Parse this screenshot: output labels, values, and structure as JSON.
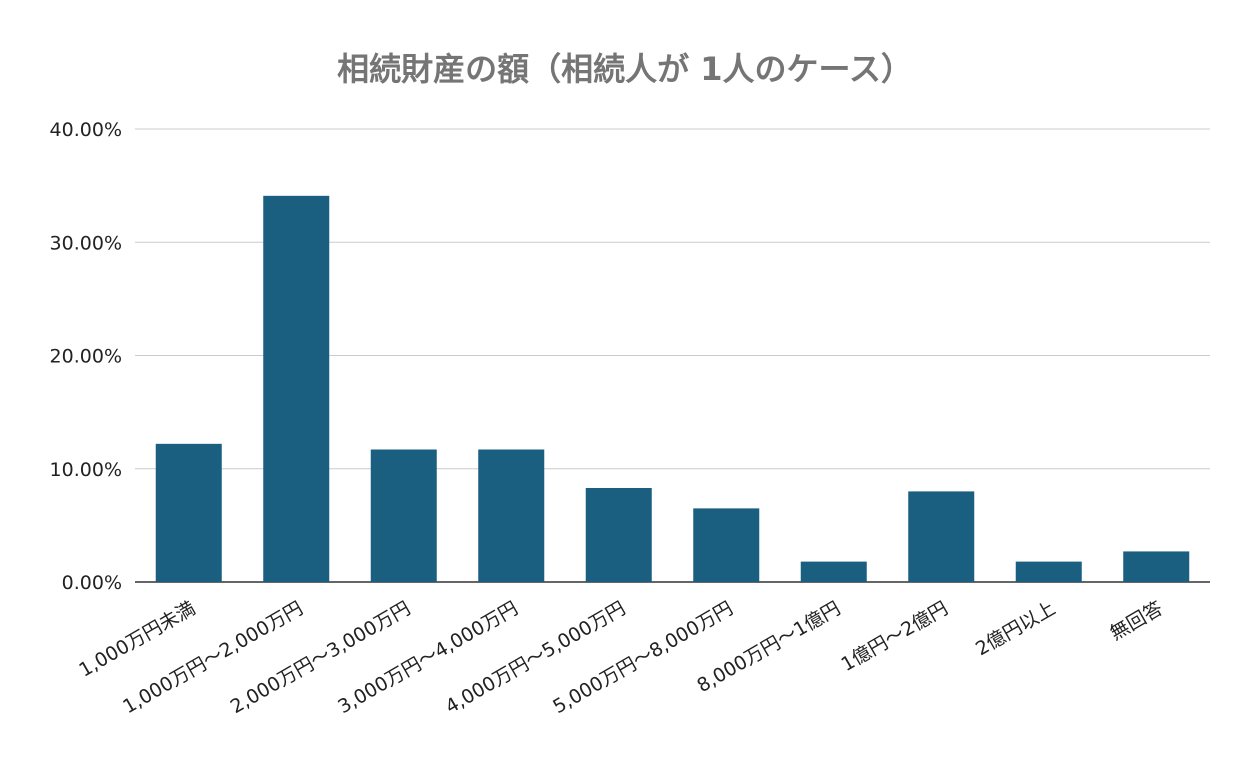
{
  "chart_data": {
    "type": "bar",
    "title": "相続財産の額（相続人が 1人のケース）",
    "xlabel": "",
    "ylabel": "",
    "ylim": [
      0,
      40
    ],
    "yticks": [
      "0.00%",
      "10.00%",
      "20.00%",
      "30.00%",
      "40.00%"
    ],
    "grid": true,
    "categories": [
      "1,000万円未満",
      "1,000万円～2,000万円",
      "2,000万円～3,000万円",
      "3,000万円～4,000万円",
      "4,000万円～5,000万円",
      "5,000万円～8,000万円",
      "8,000万円～1億円",
      "1億円～2億円",
      "2億円以上",
      "無回答"
    ],
    "values": [
      12.2,
      34.1,
      11.7,
      11.7,
      8.3,
      6.5,
      1.8,
      8.0,
      1.8,
      2.7
    ],
    "unit": "%",
    "colors": {
      "bar": "#1a5f80",
      "title": "#757575",
      "grid": "#cccccc",
      "axis": "#333333"
    }
  }
}
